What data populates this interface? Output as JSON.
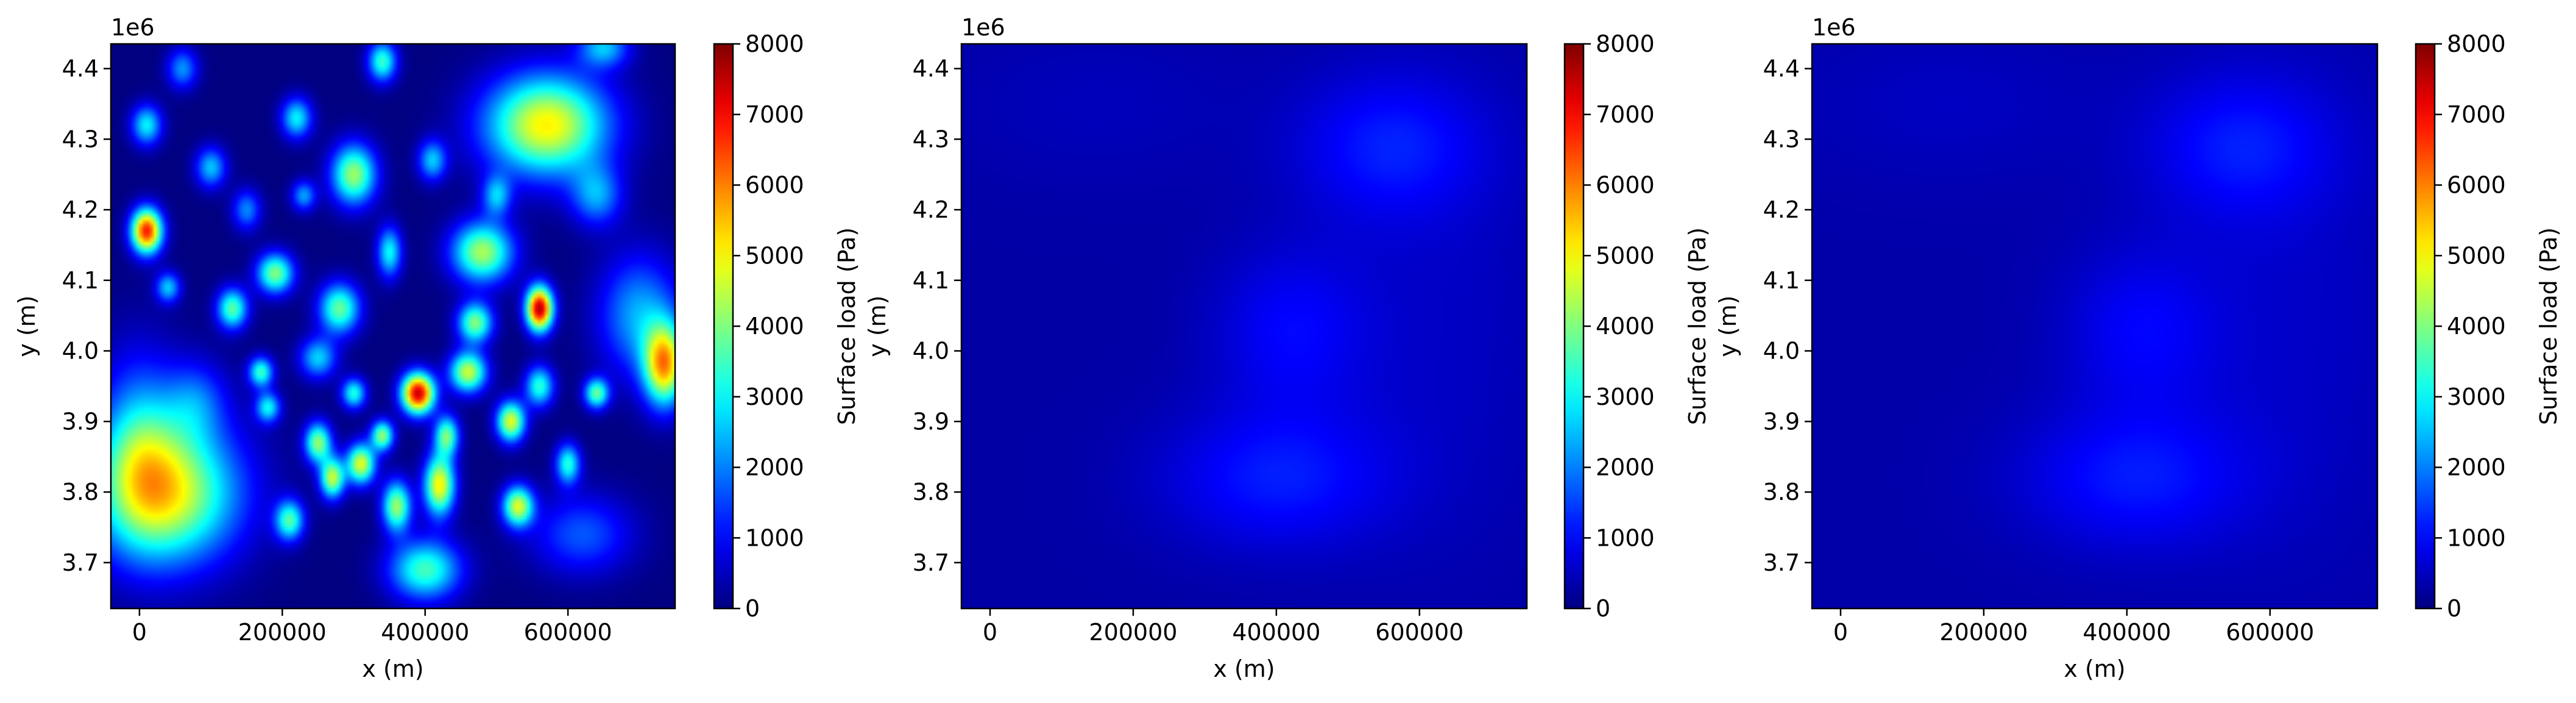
{
  "chart_data": [
    {
      "type": "heatmap",
      "panel": "left",
      "xlabel": "x (m)",
      "ylabel": "y (m)",
      "offset_text": "1e6",
      "xlim": [
        -40000,
        750000
      ],
      "ylim": [
        3.635,
        4.435
      ],
      "xticks": [
        0,
        200000,
        400000,
        600000
      ],
      "xtick_labels": [
        "0",
        "200000",
        "400000",
        "600000"
      ],
      "yticks": [
        3.7,
        3.8,
        3.9,
        4.0,
        4.1,
        4.2,
        4.3,
        4.4
      ],
      "ytick_labels": [
        "3.7",
        "3.8",
        "3.9",
        "4.0",
        "4.1",
        "4.2",
        "4.3",
        "4.4"
      ],
      "colorbar": {
        "label": "Surface load (Pa)",
        "colormap": "jet",
        "range": [
          0,
          8000
        ],
        "ticks": [
          0,
          1000,
          2000,
          3000,
          4000,
          5000,
          6000,
          7000,
          8000
        ],
        "tick_labels": [
          "0",
          "1000",
          "2000",
          "3000",
          "4000",
          "5000",
          "6000",
          "7000",
          "8000"
        ]
      },
      "blobs": [
        {
          "x": 40000,
          "y": 3.8,
          "sx": 70000,
          "sy": 0.07,
          "v": 4800
        },
        {
          "x": 0,
          "y": 3.87,
          "sx": 40000,
          "sy": 0.09,
          "v": 2200
        },
        {
          "x": 400000,
          "y": 3.69,
          "sx": 35000,
          "sy": 0.03,
          "v": 3600
        },
        {
          "x": 570000,
          "y": 4.32,
          "sx": 60000,
          "sy": 0.05,
          "v": 5200
        },
        {
          "x": 700000,
          "y": 4.05,
          "sx": 40000,
          "sy": 0.06,
          "v": 2400
        },
        {
          "x": 735000,
          "y": 3.98,
          "sx": 20000,
          "sy": 0.04,
          "v": 5500
        },
        {
          "x": 10000,
          "y": 4.17,
          "sx": 15000,
          "sy": 0.022,
          "v": 7000
        },
        {
          "x": 390000,
          "y": 3.94,
          "sx": 16000,
          "sy": 0.02,
          "v": 7600
        },
        {
          "x": 560000,
          "y": 4.06,
          "sx": 13000,
          "sy": 0.022,
          "v": 7800
        },
        {
          "x": 480000,
          "y": 4.14,
          "sx": 30000,
          "sy": 0.03,
          "v": 4400
        },
        {
          "x": 300000,
          "y": 4.25,
          "sx": 22000,
          "sy": 0.03,
          "v": 4300
        },
        {
          "x": 190000,
          "y": 4.11,
          "sx": 18000,
          "sy": 0.02,
          "v": 4100
        },
        {
          "x": 340000,
          "y": 4.41,
          "sx": 14000,
          "sy": 0.02,
          "v": 3500
        },
        {
          "x": 10000,
          "y": 4.32,
          "sx": 15000,
          "sy": 0.02,
          "v": 3000
        },
        {
          "x": 130000,
          "y": 4.06,
          "sx": 15000,
          "sy": 0.02,
          "v": 3800
        },
        {
          "x": 280000,
          "y": 4.06,
          "sx": 20000,
          "sy": 0.025,
          "v": 3900
        },
        {
          "x": 460000,
          "y": 3.97,
          "sx": 18000,
          "sy": 0.02,
          "v": 4700
        },
        {
          "x": 520000,
          "y": 3.9,
          "sx": 14000,
          "sy": 0.02,
          "v": 4900
        },
        {
          "x": 420000,
          "y": 3.81,
          "sx": 15000,
          "sy": 0.03,
          "v": 5200
        },
        {
          "x": 310000,
          "y": 3.84,
          "sx": 14000,
          "sy": 0.02,
          "v": 4900
        },
        {
          "x": 210000,
          "y": 3.76,
          "sx": 14000,
          "sy": 0.02,
          "v": 3600
        },
        {
          "x": 530000,
          "y": 3.78,
          "sx": 15000,
          "sy": 0.02,
          "v": 4700
        },
        {
          "x": 250000,
          "y": 3.87,
          "sx": 13000,
          "sy": 0.02,
          "v": 4200
        },
        {
          "x": 360000,
          "y": 3.78,
          "sx": 14000,
          "sy": 0.025,
          "v": 4300
        },
        {
          "x": 640000,
          "y": 3.94,
          "sx": 12000,
          "sy": 0.015,
          "v": 3800
        },
        {
          "x": 170000,
          "y": 3.97,
          "sx": 12000,
          "sy": 0.015,
          "v": 3500
        },
        {
          "x": 470000,
          "y": 4.04,
          "sx": 17000,
          "sy": 0.02,
          "v": 4100
        },
        {
          "x": 560000,
          "y": 3.95,
          "sx": 14000,
          "sy": 0.02,
          "v": 3400
        },
        {
          "x": 220000,
          "y": 4.33,
          "sx": 15000,
          "sy": 0.02,
          "v": 3000
        },
        {
          "x": 100000,
          "y": 4.26,
          "sx": 15000,
          "sy": 0.02,
          "v": 2600
        },
        {
          "x": 270000,
          "y": 3.82,
          "sx": 12000,
          "sy": 0.02,
          "v": 4600
        },
        {
          "x": 340000,
          "y": 3.88,
          "sx": 11000,
          "sy": 0.015,
          "v": 4200
        },
        {
          "x": 600000,
          "y": 3.84,
          "sx": 12000,
          "sy": 0.02,
          "v": 3300
        },
        {
          "x": 430000,
          "y": 3.88,
          "sx": 12000,
          "sy": 0.02,
          "v": 3900
        },
        {
          "x": 350000,
          "y": 4.14,
          "sx": 12000,
          "sy": 0.025,
          "v": 3100
        },
        {
          "x": 60000,
          "y": 4.4,
          "sx": 15000,
          "sy": 0.02,
          "v": 2200
        },
        {
          "x": 150000,
          "y": 4.2,
          "sx": 14000,
          "sy": 0.02,
          "v": 2100
        },
        {
          "x": 650000,
          "y": 4.43,
          "sx": 25000,
          "sy": 0.02,
          "v": 2500
        },
        {
          "x": 250000,
          "y": 3.99,
          "sx": 18000,
          "sy": 0.02,
          "v": 2700
        },
        {
          "x": 640000,
          "y": 4.22,
          "sx": 25000,
          "sy": 0.03,
          "v": 2200
        },
        {
          "x": 80000,
          "y": 3.93,
          "sx": 30000,
          "sy": 0.04,
          "v": 1500
        },
        {
          "x": 620000,
          "y": 3.74,
          "sx": 50000,
          "sy": 0.04,
          "v": 1700
        },
        {
          "x": 180000,
          "y": 3.92,
          "sx": 12000,
          "sy": 0.015,
          "v": 3000
        },
        {
          "x": 40000,
          "y": 4.09,
          "sx": 12000,
          "sy": 0.015,
          "v": 2600
        },
        {
          "x": 410000,
          "y": 4.27,
          "sx": 14000,
          "sy": 0.02,
          "v": 2600
        },
        {
          "x": 500000,
          "y": 4.22,
          "sx": 14000,
          "sy": 0.02,
          "v": 2400
        },
        {
          "x": 230000,
          "y": 4.22,
          "sx": 12000,
          "sy": 0.015,
          "v": 2300
        },
        {
          "x": 300000,
          "y": 3.94,
          "sx": 12000,
          "sy": 0.015,
          "v": 3300
        }
      ]
    },
    {
      "type": "heatmap",
      "panel": "middle",
      "xlabel": "x (m)",
      "ylabel": "y (m)",
      "offset_text": "1e6",
      "xlim": [
        -40000,
        750000
      ],
      "ylim": [
        3.635,
        4.435
      ],
      "xticks": [
        0,
        200000,
        400000,
        600000
      ],
      "xtick_labels": [
        "0",
        "200000",
        "400000",
        "600000"
      ],
      "yticks": [
        3.7,
        3.8,
        3.9,
        4.0,
        4.1,
        4.2,
        4.3,
        4.4
      ],
      "ytick_labels": [
        "3.7",
        "3.8",
        "3.9",
        "4.0",
        "4.1",
        "4.2",
        "4.3",
        "4.4"
      ],
      "colorbar": {
        "label": "Surface load (Pa)",
        "colormap": "jet",
        "range": [
          0,
          8000
        ],
        "ticks": [
          0,
          1000,
          2000,
          3000,
          4000,
          5000,
          6000,
          7000,
          8000
        ],
        "tick_labels": [
          "0",
          "1000",
          "2000",
          "3000",
          "4000",
          "5000",
          "6000",
          "7000",
          "8000"
        ]
      },
      "background": 300,
      "blobs": [
        {
          "x": 560000,
          "y": 4.29,
          "sx": 90000,
          "sy": 0.07,
          "v": 850
        },
        {
          "x": 420000,
          "y": 4.03,
          "sx": 75000,
          "sy": 0.08,
          "v": 700
        },
        {
          "x": 400000,
          "y": 3.82,
          "sx": 110000,
          "sy": 0.07,
          "v": 900
        },
        {
          "x": 620000,
          "y": 4.05,
          "sx": 120000,
          "sy": 0.25,
          "v": 250
        },
        {
          "x": 150000,
          "y": 4.35,
          "sx": 150000,
          "sy": 0.08,
          "v": 180
        }
      ]
    },
    {
      "type": "heatmap",
      "panel": "right",
      "xlabel": "x (m)",
      "ylabel": "y (m)",
      "offset_text": "1e6",
      "xlim": [
        -40000,
        750000
      ],
      "ylim": [
        3.635,
        4.435
      ],
      "xticks": [
        0,
        200000,
        400000,
        600000
      ],
      "xtick_labels": [
        "0",
        "200000",
        "400000",
        "600000"
      ],
      "yticks": [
        3.7,
        3.8,
        3.9,
        4.0,
        4.1,
        4.2,
        4.3,
        4.4
      ],
      "ytick_labels": [
        "3.7",
        "3.8",
        "3.9",
        "4.0",
        "4.1",
        "4.2",
        "4.3",
        "4.4"
      ],
      "colorbar": {
        "label": "Surface load (Pa)",
        "colormap": "jet",
        "range": [
          0,
          8000
        ],
        "ticks": [
          0,
          1000,
          2000,
          3000,
          4000,
          5000,
          6000,
          7000,
          8000
        ],
        "tick_labels": [
          "0",
          "1000",
          "2000",
          "3000",
          "4000",
          "5000",
          "6000",
          "7000",
          "8000"
        ]
      },
      "background": 330,
      "blobs": [
        {
          "x": 560000,
          "y": 4.29,
          "sx": 90000,
          "sy": 0.07,
          "v": 800
        },
        {
          "x": 420000,
          "y": 4.03,
          "sx": 75000,
          "sy": 0.08,
          "v": 650
        },
        {
          "x": 410000,
          "y": 3.82,
          "sx": 110000,
          "sy": 0.07,
          "v": 850
        },
        {
          "x": 620000,
          "y": 4.05,
          "sx": 120000,
          "sy": 0.25,
          "v": 250
        },
        {
          "x": 150000,
          "y": 4.35,
          "sx": 150000,
          "sy": 0.08,
          "v": 200
        }
      ]
    }
  ]
}
